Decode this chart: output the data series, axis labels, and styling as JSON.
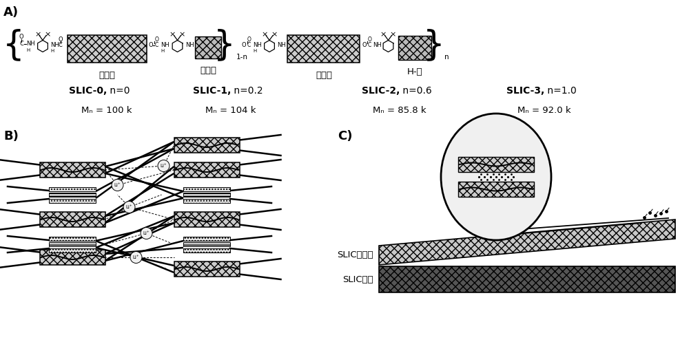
{
  "panel_A_label": "A)",
  "panel_B_label": "B)",
  "panel_C_label": "C)",
  "slic_labels": [
    "SLIC-0",
    "SLIC-1",
    "SLIC-2",
    "SLIC-3"
  ],
  "slic_n_values": [
    "n=0",
    "n=0.2",
    "n=0.6",
    "n=1.0"
  ],
  "slic_mn_values": [
    "Mₙ = 100 k",
    "Mₙ = 104 k",
    "Mₙ = 85.8 k",
    "Mₙ = 92.0 k"
  ],
  "soft_segment_label": "软链段",
  "spacer_label": "间隔基",
  "hbond_label": "H-键",
  "repeat_label_1n": "1-n",
  "repeat_label_n": "n",
  "slic_electrolyte": "SLIC电解质",
  "slic_electrode": "SLIC电极",
  "bg_color": "#ffffff"
}
